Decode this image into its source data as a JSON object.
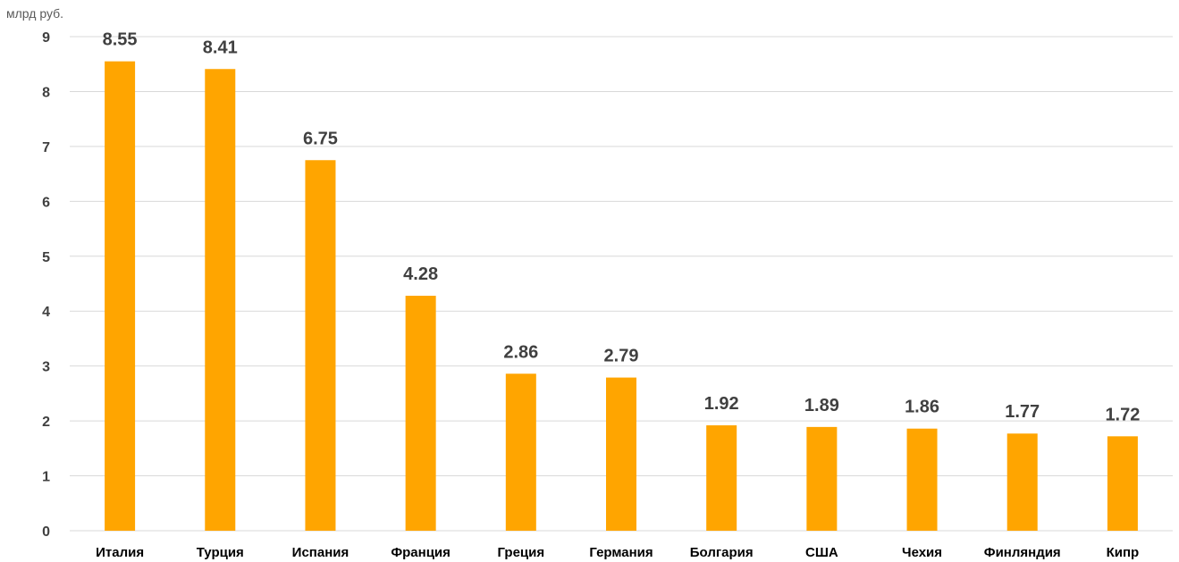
{
  "chart_data": {
    "type": "bar",
    "unit_label": "млрд руб.",
    "categories": [
      "Италия",
      "Турция",
      "Испания",
      "Франция",
      "Греция",
      "Германия",
      "Болгария",
      "США",
      "Чехия",
      "Финляндия",
      "Кипр"
    ],
    "values": [
      8.55,
      8.41,
      6.75,
      4.28,
      2.86,
      2.79,
      1.92,
      1.89,
      1.86,
      1.77,
      1.72
    ],
    "value_labels": [
      "8.55",
      "8.41",
      "6.75",
      "4.28",
      "2.86",
      "2.79",
      "1.92",
      "1.89",
      "1.86",
      "1.77",
      "1.72"
    ],
    "y_ticks": [
      "0",
      "1",
      "2",
      "3",
      "4",
      "5",
      "6",
      "7",
      "8",
      "9"
    ],
    "ylim": [
      0,
      9
    ],
    "grid": true,
    "legend": "none",
    "bar_color": "#FFA500",
    "title": "",
    "xlabel": "",
    "ylabel": ""
  }
}
